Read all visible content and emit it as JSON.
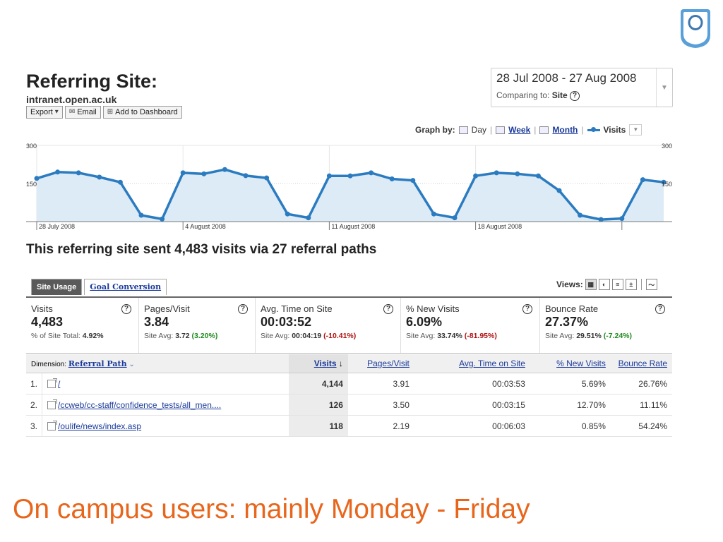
{
  "logo": {
    "name": "open-university-logo"
  },
  "header": {
    "title": "Referring Site:",
    "site": "intranet.open.ac.uk",
    "toolbar": {
      "export": "Export",
      "email": "Email",
      "add_dashboard": "Add to Dashboard"
    }
  },
  "date_range": {
    "range": "28 Jul 2008 - 27 Aug 2008",
    "comparing_label": "Comparing to:",
    "comparing_value": "Site"
  },
  "graph_by": {
    "label": "Graph by:",
    "day": "Day",
    "week": "Week",
    "month": "Month",
    "metric": "Visits"
  },
  "chart_data": {
    "type": "area",
    "series": [
      {
        "name": "Visits",
        "values": [
          170,
          195,
          192,
          175,
          155,
          25,
          10,
          192,
          188,
          205,
          181,
          172,
          30,
          15,
          180,
          180,
          192,
          168,
          162,
          30,
          15,
          180,
          192,
          188,
          180,
          122,
          25,
          8,
          12,
          165,
          155
        ]
      }
    ],
    "ylim": [
      0,
      300
    ],
    "yticks_left": [
      "300",
      "150"
    ],
    "yticks_right": [
      "300",
      "150"
    ],
    "x_tick_labels": [
      "28 July 2008",
      "4 August 2008",
      "11 August 2008",
      "18 August 2008"
    ],
    "x_tick_index": [
      0,
      7,
      14,
      21
    ],
    "grid": true,
    "colors": {
      "line": "#2b7bc0",
      "fill": "#dcebf6"
    }
  },
  "summary": "This referring site sent 4,483 visits via 27 referral paths",
  "tabs": [
    "Site Usage",
    "Goal Conversion"
  ],
  "views_label": "Views:",
  "metrics": [
    {
      "label": "Visits",
      "value": "4,483",
      "sub_label": "% of Site Total:",
      "sub_value": "4.92%",
      "delta": ""
    },
    {
      "label": "Pages/Visit",
      "value": "3.84",
      "sub_label": "Site Avg:",
      "sub_value": "3.72",
      "delta": "(3.20%)"
    },
    {
      "label": "Avg. Time on Site",
      "value": "00:03:52",
      "sub_label": "Site Avg:",
      "sub_value": "00:04:19",
      "delta": "(-10.41%)"
    },
    {
      "label": "% New Visits",
      "value": "6.09%",
      "sub_label": "Site Avg:",
      "sub_value": "33.74%",
      "delta": "(-81.95%)"
    },
    {
      "label": "Bounce Rate",
      "value": "27.37%",
      "sub_label": "Site Avg:",
      "sub_value": "29.51%",
      "delta": "(-7.24%)"
    }
  ],
  "table": {
    "dimension_label": "Dimension:",
    "dimension_value": "Referral Path",
    "columns": [
      "Visits",
      "Pages/Visit",
      "Avg. Time on Site",
      "% New Visits",
      "Bounce Rate"
    ],
    "rows": [
      {
        "num": "1.",
        "path": "/",
        "visits": "4,144",
        "ppv": "3.91",
        "time": "00:03:53",
        "new": "5.69%",
        "bounce": "26.76%"
      },
      {
        "num": "2.",
        "path": "/ccweb/cc-staff/confidence_tests/all_men....",
        "visits": "126",
        "ppv": "3.50",
        "time": "00:03:15",
        "new": "12.70%",
        "bounce": "11.11%"
      },
      {
        "num": "3.",
        "path": "/oulife/news/index.asp",
        "visits": "118",
        "ppv": "2.19",
        "time": "00:06:03",
        "new": "0.85%",
        "bounce": "54.24%"
      }
    ]
  },
  "caption": "On campus users: mainly Monday - Friday"
}
